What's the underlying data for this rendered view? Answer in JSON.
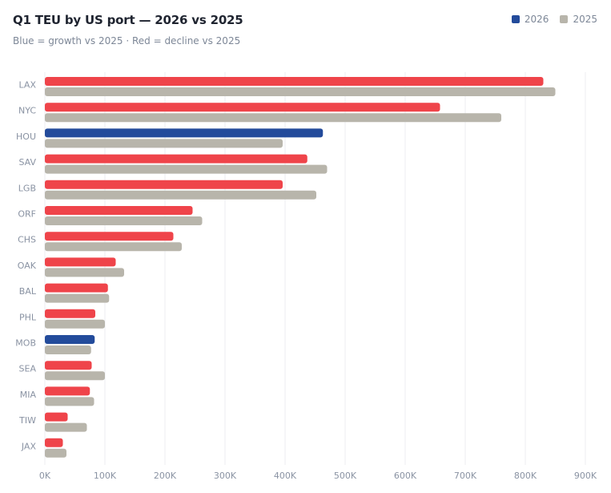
{
  "title": "Q1 TEU by US port — 2026 vs 2025",
  "subtitle": "Blue = growth vs 2025 · Red = decline vs 2025",
  "colors": {
    "growth": "#234b9b",
    "decline": "#ef444a",
    "prior": "#b8b5ab",
    "grid": "#eceef1",
    "tick": "#8a93a3"
  },
  "legend": [
    {
      "label": "2026",
      "color": "#234b9b"
    },
    {
      "label": "2025",
      "color": "#b8b5ab"
    }
  ],
  "chart_data": {
    "type": "bar",
    "orientation": "horizontal",
    "title": "Q1 TEU by US port — 2026 vs 2025",
    "xlabel": "",
    "ylabel": "",
    "xlim": [
      0,
      900000
    ],
    "xticks": [
      0,
      100000,
      200000,
      300000,
      400000,
      500000,
      600000,
      700000,
      800000,
      900000
    ],
    "xtick_labels": [
      "0K",
      "100K",
      "200K",
      "300K",
      "400K",
      "500K",
      "600K",
      "700K",
      "800K",
      "900K"
    ],
    "grid": "vertical",
    "legend_position": "top-right",
    "categories": [
      "LAX",
      "NYC",
      "HOU",
      "SAV",
      "LGB",
      "ORF",
      "CHS",
      "OAK",
      "BAL",
      "PHL",
      "MOB",
      "SEA",
      "MIA",
      "TIW",
      "JAX"
    ],
    "series": [
      {
        "name": "2026",
        "values": [
          830000,
          658000,
          463000,
          437000,
          396000,
          246000,
          214000,
          118000,
          105000,
          84000,
          83000,
          78000,
          75000,
          38000,
          30000
        ]
      },
      {
        "name": "2025",
        "values": [
          850000,
          760000,
          396000,
          470000,
          452000,
          262000,
          228000,
          132000,
          107000,
          100000,
          77000,
          100000,
          82000,
          70000,
          36000
        ]
      }
    ]
  }
}
